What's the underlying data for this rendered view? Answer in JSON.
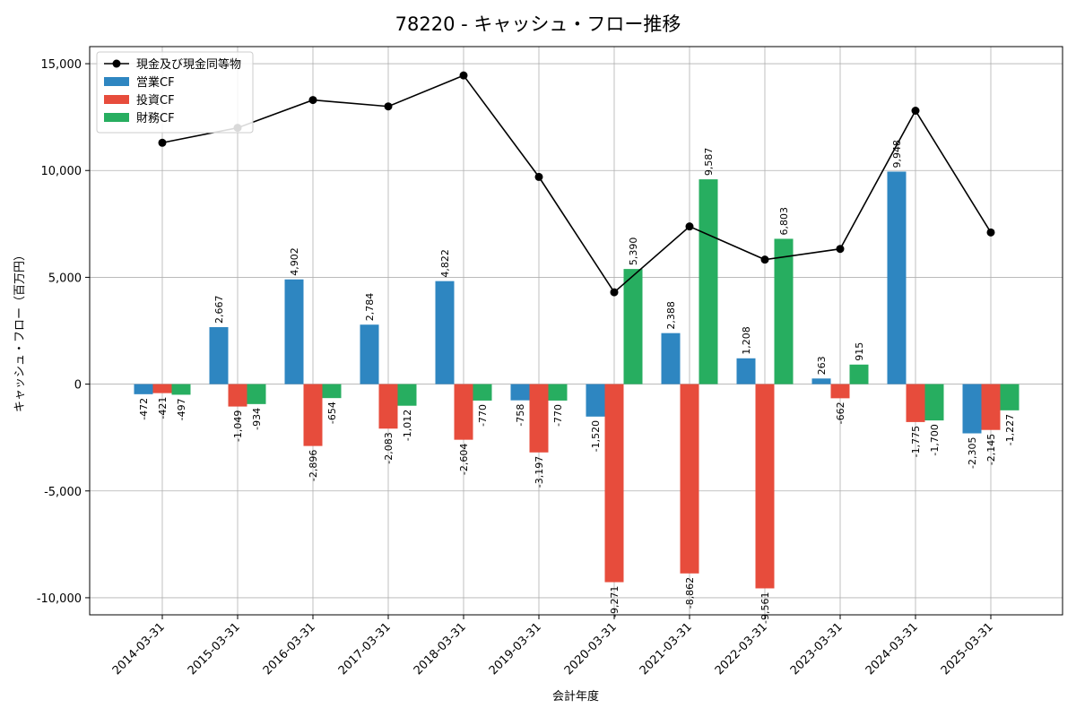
{
  "chart_data": {
    "type": "bar",
    "title": "78220 - キャッシュ・フロー推移",
    "xlabel": "会計年度",
    "ylabel": "キャッシュ・フロー（百万円）",
    "ylim": [
      -10800,
      15800
    ],
    "yticks": [
      -10000,
      -5000,
      0,
      5000,
      10000,
      15000
    ],
    "ytick_labels": [
      "-10,000",
      "-5,000",
      "0",
      "5,000",
      "10,000",
      "15,000"
    ],
    "grid": true,
    "legend_position": "top-left",
    "categories": [
      "2014-03-31",
      "2015-03-31",
      "2016-03-31",
      "2017-03-31",
      "2018-03-31",
      "2019-03-31",
      "2020-03-31",
      "2021-03-31",
      "2022-03-31",
      "2023-03-31",
      "2024-03-31",
      "2025-03-31"
    ],
    "series": [
      {
        "name": "営業CF",
        "kind": "bar",
        "color": "#2e86c1",
        "values": [
          -472,
          2667,
          4902,
          2784,
          4822,
          -758,
          -1520,
          2388,
          1208,
          263,
          9948,
          -2305
        ],
        "labels": [
          "-472",
          "2,667",
          "4,902",
          "2,784",
          "4,822",
          "-758",
          "-1,520",
          "2,388",
          "1,208",
          "263",
          "9,948",
          "-2,305"
        ]
      },
      {
        "name": "投資CF",
        "kind": "bar",
        "color": "#e74c3c",
        "values": [
          -421,
          -1049,
          -2896,
          -2083,
          -2604,
          -3197,
          -9271,
          -8862,
          -9561,
          -662,
          -1775,
          -2145
        ],
        "labels": [
          "-421",
          "-1,049",
          "-2,896",
          "-2,083",
          "-2,604",
          "-3,197",
          "-9,271",
          "-8,862",
          "-9,561",
          "-662",
          "-1,775",
          "-2,145"
        ]
      },
      {
        "name": "財務CF",
        "kind": "bar",
        "color": "#27ae60",
        "values": [
          -497,
          -934,
          -654,
          -1012,
          -770,
          -770,
          5390,
          9587,
          6803,
          915,
          -1700,
          -1227
        ],
        "labels": [
          "-497",
          "-934",
          "-654",
          "-1,012",
          "-770",
          "-770",
          "5,390",
          "9,587",
          "6,803",
          "915",
          "-1,700",
          "-1,227"
        ]
      },
      {
        "name": "現金及び現金同等物",
        "kind": "line",
        "color": "#000000",
        "values": [
          11300,
          12000,
          13300,
          13000,
          14450,
          9700,
          4300,
          7380,
          5830,
          6330,
          12800,
          7100
        ]
      }
    ]
  }
}
